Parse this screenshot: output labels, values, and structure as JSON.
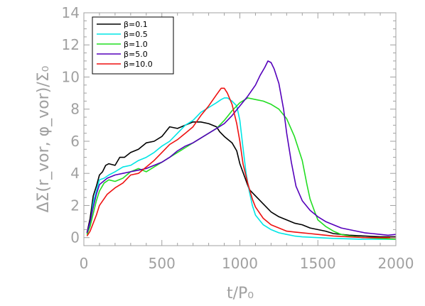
{
  "chart_data": {
    "type": "line",
    "title": "",
    "xlabel": "t/P₀",
    "ylabel": "ΔΣ(r_vor, φ_vor)/Σ₀",
    "xlim": [
      0,
      2000
    ],
    "ylim": [
      -0.5,
      14
    ],
    "xticks": [
      0,
      500,
      1000,
      1500,
      2000
    ],
    "yticks": [
      0,
      2,
      4,
      6,
      8,
      10,
      12,
      14
    ],
    "grid": false,
    "legend_position": "top-left",
    "axis_color": "#a0a0a0",
    "series": [
      {
        "name": "β=0.1",
        "color": "#000000",
        "points": [
          [
            20,
            0.3
          ],
          [
            40,
            1.2
          ],
          [
            60,
            2.6
          ],
          [
            80,
            3.2
          ],
          [
            100,
            3.9
          ],
          [
            120,
            4.1
          ],
          [
            140,
            4.5
          ],
          [
            160,
            4.6
          ],
          [
            200,
            4.5
          ],
          [
            230,
            5.0
          ],
          [
            260,
            5.0
          ],
          [
            300,
            5.3
          ],
          [
            350,
            5.5
          ],
          [
            400,
            5.9
          ],
          [
            450,
            6.0
          ],
          [
            500,
            6.3
          ],
          [
            550,
            6.9
          ],
          [
            600,
            6.8
          ],
          [
            650,
            7.0
          ],
          [
            700,
            7.2
          ],
          [
            750,
            7.2
          ],
          [
            800,
            7.1
          ],
          [
            850,
            6.9
          ],
          [
            870,
            6.6
          ],
          [
            900,
            6.3
          ],
          [
            950,
            5.9
          ],
          [
            980,
            5.4
          ],
          [
            1000,
            4.6
          ],
          [
            1030,
            3.8
          ],
          [
            1060,
            3.0
          ],
          [
            1100,
            2.6
          ],
          [
            1150,
            2.1
          ],
          [
            1200,
            1.6
          ],
          [
            1250,
            1.3
          ],
          [
            1300,
            1.1
          ],
          [
            1350,
            0.9
          ],
          [
            1400,
            0.8
          ],
          [
            1450,
            0.6
          ],
          [
            1500,
            0.5
          ],
          [
            1550,
            0.4
          ],
          [
            1600,
            0.25
          ],
          [
            1650,
            0.2
          ],
          [
            1700,
            0.15
          ],
          [
            1800,
            0.1
          ],
          [
            1900,
            0.05
          ],
          [
            2000,
            0.05
          ]
        ]
      },
      {
        "name": "β=0.5",
        "color": "#00e5e5",
        "points": [
          [
            20,
            0.2
          ],
          [
            40,
            0.8
          ],
          [
            60,
            2.2
          ],
          [
            80,
            2.9
          ],
          [
            100,
            3.6
          ],
          [
            130,
            3.7
          ],
          [
            160,
            3.9
          ],
          [
            200,
            4.1
          ],
          [
            250,
            4.4
          ],
          [
            300,
            4.5
          ],
          [
            350,
            4.8
          ],
          [
            400,
            5.0
          ],
          [
            450,
            5.3
          ],
          [
            500,
            5.7
          ],
          [
            550,
            6.0
          ],
          [
            600,
            6.5
          ],
          [
            650,
            7.0
          ],
          [
            700,
            7.3
          ],
          [
            750,
            7.8
          ],
          [
            800,
            8.1
          ],
          [
            850,
            8.4
          ],
          [
            880,
            8.6
          ],
          [
            900,
            8.7
          ],
          [
            920,
            8.7
          ],
          [
            950,
            8.5
          ],
          [
            980,
            8.2
          ],
          [
            1000,
            7.3
          ],
          [
            1020,
            5.6
          ],
          [
            1040,
            4.0
          ],
          [
            1060,
            2.9
          ],
          [
            1080,
            2.0
          ],
          [
            1100,
            1.4
          ],
          [
            1150,
            0.8
          ],
          [
            1200,
            0.5
          ],
          [
            1250,
            0.3
          ],
          [
            1300,
            0.2
          ],
          [
            1350,
            0.1
          ],
          [
            1400,
            0.05
          ],
          [
            1500,
            0.0
          ],
          [
            1600,
            -0.05
          ],
          [
            1800,
            -0.1
          ],
          [
            2000,
            -0.1
          ]
        ]
      },
      {
        "name": "β=1.0",
        "color": "#22dd22",
        "points": [
          [
            20,
            0.2
          ],
          [
            40,
            0.7
          ],
          [
            60,
            1.5
          ],
          [
            80,
            2.3
          ],
          [
            100,
            2.9
          ],
          [
            130,
            3.4
          ],
          [
            160,
            3.6
          ],
          [
            200,
            3.5
          ],
          [
            250,
            3.7
          ],
          [
            300,
            4.1
          ],
          [
            350,
            4.3
          ],
          [
            400,
            4.1
          ],
          [
            450,
            4.4
          ],
          [
            500,
            4.7
          ],
          [
            550,
            5.0
          ],
          [
            600,
            5.3
          ],
          [
            650,
            5.6
          ],
          [
            700,
            5.9
          ],
          [
            750,
            6.2
          ],
          [
            800,
            6.5
          ],
          [
            850,
            6.8
          ],
          [
            900,
            7.3
          ],
          [
            950,
            7.9
          ],
          [
            1000,
            8.4
          ],
          [
            1050,
            8.7
          ],
          [
            1100,
            8.6
          ],
          [
            1150,
            8.5
          ],
          [
            1200,
            8.3
          ],
          [
            1250,
            8.0
          ],
          [
            1300,
            7.4
          ],
          [
            1350,
            6.3
          ],
          [
            1400,
            4.8
          ],
          [
            1430,
            3.3
          ],
          [
            1450,
            2.4
          ],
          [
            1480,
            1.6
          ],
          [
            1500,
            1.1
          ],
          [
            1550,
            0.7
          ],
          [
            1600,
            0.4
          ],
          [
            1650,
            0.2
          ],
          [
            1700,
            0.1
          ],
          [
            1800,
            0.0
          ],
          [
            1900,
            -0.05
          ],
          [
            2000,
            -0.1
          ]
        ]
      },
      {
        "name": "β=5.0",
        "color": "#5500bb",
        "points": [
          [
            20,
            0.3
          ],
          [
            40,
            1.0
          ],
          [
            60,
            1.9
          ],
          [
            80,
            2.7
          ],
          [
            100,
            3.3
          ],
          [
            150,
            3.7
          ],
          [
            200,
            3.9
          ],
          [
            250,
            4.0
          ],
          [
            300,
            4.1
          ],
          [
            350,
            4.2
          ],
          [
            400,
            4.3
          ],
          [
            450,
            4.5
          ],
          [
            500,
            4.7
          ],
          [
            550,
            5.0
          ],
          [
            600,
            5.4
          ],
          [
            650,
            5.7
          ],
          [
            700,
            5.9
          ],
          [
            750,
            6.2
          ],
          [
            800,
            6.5
          ],
          [
            850,
            6.8
          ],
          [
            900,
            7.1
          ],
          [
            950,
            7.6
          ],
          [
            1000,
            8.2
          ],
          [
            1050,
            8.8
          ],
          [
            1100,
            9.5
          ],
          [
            1130,
            10.1
          ],
          [
            1160,
            10.6
          ],
          [
            1180,
            11.0
          ],
          [
            1200,
            10.9
          ],
          [
            1220,
            10.5
          ],
          [
            1250,
            9.6
          ],
          [
            1280,
            8.0
          ],
          [
            1300,
            6.5
          ],
          [
            1330,
            4.7
          ],
          [
            1360,
            3.2
          ],
          [
            1400,
            2.3
          ],
          [
            1450,
            1.7
          ],
          [
            1500,
            1.3
          ],
          [
            1550,
            1.0
          ],
          [
            1600,
            0.8
          ],
          [
            1650,
            0.6
          ],
          [
            1700,
            0.5
          ],
          [
            1750,
            0.4
          ],
          [
            1800,
            0.3
          ],
          [
            1850,
            0.25
          ],
          [
            1900,
            0.2
          ],
          [
            1950,
            0.15
          ],
          [
            2000,
            0.2
          ]
        ]
      },
      {
        "name": "β=10.0",
        "color": "#ee1111",
        "points": [
          [
            20,
            0.1
          ],
          [
            40,
            0.4
          ],
          [
            60,
            0.9
          ],
          [
            80,
            1.4
          ],
          [
            100,
            2.0
          ],
          [
            150,
            2.7
          ],
          [
            200,
            3.1
          ],
          [
            250,
            3.4
          ],
          [
            300,
            3.9
          ],
          [
            350,
            4.0
          ],
          [
            400,
            4.4
          ],
          [
            450,
            4.8
          ],
          [
            500,
            5.3
          ],
          [
            550,
            5.8
          ],
          [
            600,
            6.1
          ],
          [
            650,
            6.5
          ],
          [
            700,
            6.9
          ],
          [
            750,
            7.6
          ],
          [
            800,
            8.2
          ],
          [
            850,
            8.9
          ],
          [
            880,
            9.3
          ],
          [
            900,
            9.3
          ],
          [
            920,
            9.0
          ],
          [
            950,
            8.3
          ],
          [
            980,
            7.1
          ],
          [
            1000,
            6.0
          ],
          [
            1020,
            4.6
          ],
          [
            1050,
            3.4
          ],
          [
            1080,
            2.4
          ],
          [
            1100,
            1.9
          ],
          [
            1150,
            1.2
          ],
          [
            1200,
            0.8
          ],
          [
            1250,
            0.6
          ],
          [
            1300,
            0.4
          ],
          [
            1350,
            0.35
          ],
          [
            1400,
            0.3
          ],
          [
            1450,
            0.25
          ],
          [
            1500,
            0.2
          ],
          [
            1550,
            0.15
          ],
          [
            1600,
            0.1
          ],
          [
            1700,
            0.05
          ],
          [
            1800,
            0.0
          ],
          [
            2000,
            0.0
          ]
        ]
      }
    ]
  }
}
